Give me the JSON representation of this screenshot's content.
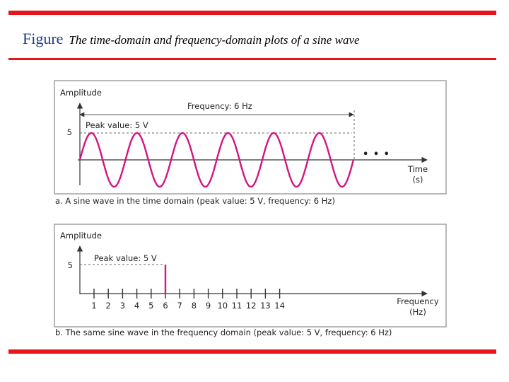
{
  "header": {
    "title_lead": "Figure",
    "title_text": "The time-domain and frequency-domain plots of a sine wave"
  },
  "colors": {
    "accent": "#e8141c",
    "wave": "#d4147f",
    "lead": "#1f3a8a"
  },
  "time_plot": {
    "y_label": "Amplitude",
    "x_label_line1": "Time",
    "x_label_line2": "(s)",
    "frequency_label": "Frequency: 6 Hz",
    "peak_label": "Peak value: 5 V",
    "peak_tick": "5",
    "ellipsis": "• • •",
    "caption": "a. A sine wave in the time domain (peak value: 5 V, frequency: 6 Hz)",
    "peak_value": 5,
    "frequency_hz": 6,
    "cycles_shown": 6
  },
  "freq_plot": {
    "y_label": "Amplitude",
    "x_label_line1": "Frequency",
    "x_label_line2": "(Hz)",
    "peak_label": "Peak value: 5 V",
    "peak_tick": "5",
    "ticks": [
      "1",
      "2",
      "3",
      "4",
      "5",
      "6",
      "7",
      "8",
      "9",
      "10",
      "11",
      "12",
      "13",
      "14"
    ],
    "spike_at": 6,
    "spike_value": 5,
    "caption": "b. The same sine wave in the frequency domain (peak value: 5 V, frequency: 6 Hz)"
  }
}
